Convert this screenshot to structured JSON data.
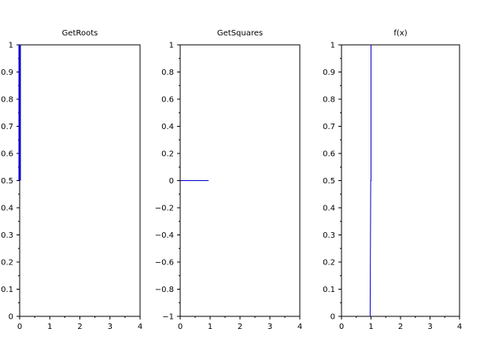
{
  "figure": {
    "background": "#ffffff",
    "line_color": "#0000cc"
  },
  "chart_data": [
    {
      "type": "line",
      "title": "GetRoots",
      "xlabel": "",
      "ylabel": "",
      "xlim": [
        0,
        4
      ],
      "ylim": [
        0,
        1
      ],
      "xticks": [
        "0",
        "1",
        "2",
        "3",
        "4"
      ],
      "xtick_values": [
        0,
        1,
        2,
        3,
        4
      ],
      "yticks": [
        "0",
        "0.1",
        "0.2",
        "0.3",
        "0.4",
        "0.5",
        "0.6",
        "0.7",
        "0.8",
        "0.9",
        "1"
      ],
      "ytick_values": [
        0,
        0.1,
        0.2,
        0.3,
        0.4,
        0.5,
        0.6,
        0.7,
        0.8,
        0.9,
        1
      ],
      "grid": false,
      "series": [
        {
          "x": [
            0,
            0
          ],
          "y": [
            0.5,
            1
          ],
          "color": "#0000cc",
          "width": "thick"
        }
      ]
    },
    {
      "type": "line",
      "title": "GetSquares",
      "xlabel": "",
      "ylabel": "",
      "xlim": [
        0,
        4
      ],
      "ylim": [
        -1,
        1
      ],
      "xticks": [
        "0",
        "1",
        "2",
        "3",
        "4"
      ],
      "xtick_values": [
        0,
        1,
        2,
        3,
        4
      ],
      "yticks": [
        "−1",
        "−0.8",
        "−0.6",
        "−0.4",
        "−0.2",
        "0",
        "0.2",
        "0.4",
        "0.6",
        "0.8",
        "1"
      ],
      "ytick_values": [
        -1,
        -0.8,
        -0.6,
        -0.4,
        -0.2,
        0,
        0.2,
        0.4,
        0.6,
        0.8,
        1
      ],
      "grid": false,
      "series": [
        {
          "x": [
            0,
            0.95
          ],
          "y": [
            0,
            0
          ],
          "color": "#0000cc",
          "width": "thin"
        }
      ]
    },
    {
      "type": "line",
      "title": "f(x)",
      "xlabel": "",
      "ylabel": "",
      "xlim": [
        0,
        4
      ],
      "ylim": [
        0,
        1
      ],
      "xticks": [
        "0",
        "1",
        "2",
        "3",
        "4"
      ],
      "xtick_values": [
        0,
        1,
        2,
        3,
        4
      ],
      "yticks": [
        "0",
        "0.1",
        "0.2",
        "0.3",
        "0.4",
        "0.5",
        "0.6",
        "0.7",
        "0.8",
        "0.9",
        "1"
      ],
      "ytick_values": [
        0,
        0.1,
        0.2,
        0.3,
        0.4,
        0.5,
        0.6,
        0.7,
        0.8,
        0.9,
        1
      ],
      "grid": false,
      "series": [
        {
          "x": [
            0.97,
            0.99,
            1.0,
            1.0
          ],
          "y": [
            0,
            0.5,
            0.5,
            1
          ],
          "color": "#0000cc",
          "width": "thin"
        }
      ]
    }
  ]
}
